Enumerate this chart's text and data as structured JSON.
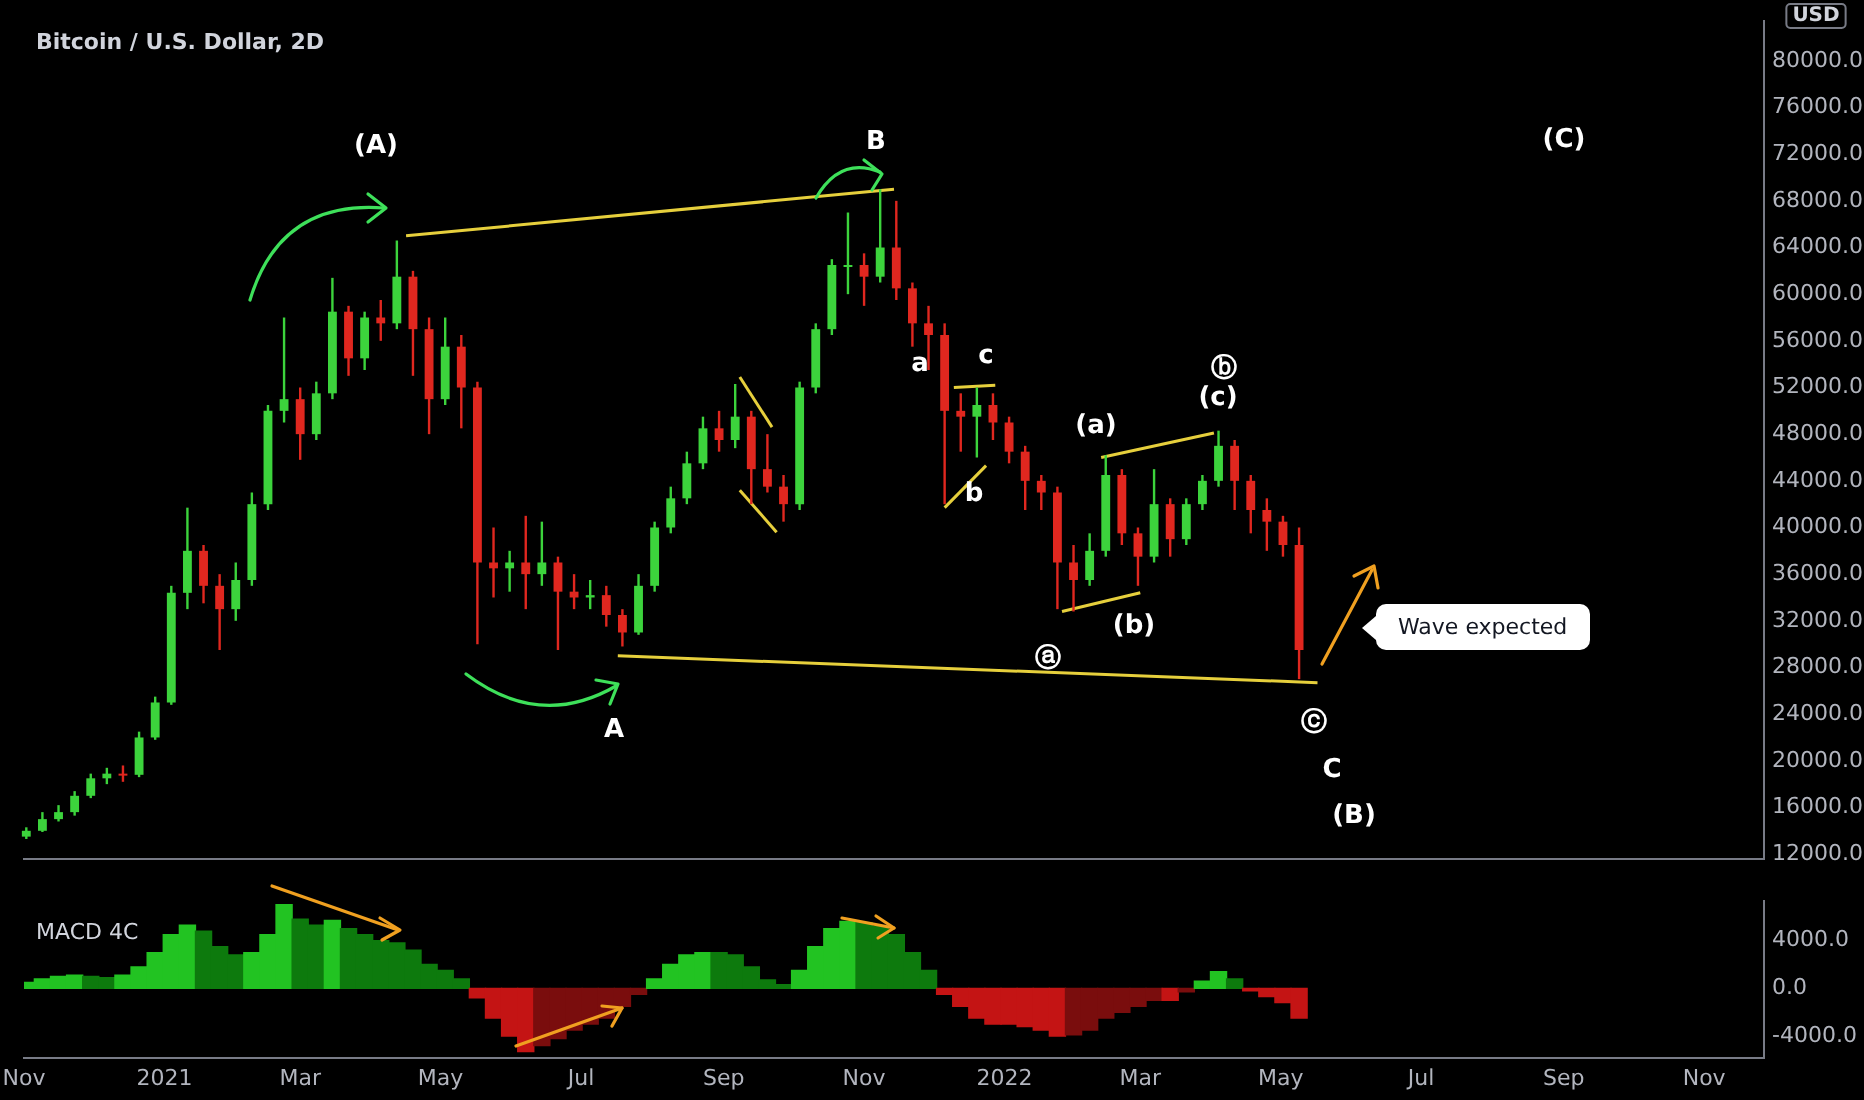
{
  "chart_data": [
    {
      "type": "candlestick",
      "title": "Bitcoin / U.S. Dollar, 2D",
      "ylabel": "USD",
      "x": [
        "2020-11-02",
        "2020-11-09",
        "2020-11-16",
        "2020-11-23",
        "2020-11-30",
        "2020-12-07",
        "2020-12-14",
        "2020-12-21",
        "2020-12-28",
        "2021-01-04",
        "2021-01-11",
        "2021-01-18",
        "2021-01-25",
        "2021-02-01",
        "2021-02-08",
        "2021-02-15",
        "2021-02-22",
        "2021-03-01",
        "2021-03-08",
        "2021-03-15",
        "2021-03-22",
        "2021-03-29",
        "2021-04-05",
        "2021-04-12",
        "2021-04-19",
        "2021-04-26",
        "2021-05-03",
        "2021-05-10",
        "2021-05-17",
        "2021-05-24",
        "2021-05-31",
        "2021-06-07",
        "2021-06-14",
        "2021-06-21",
        "2021-06-28",
        "2021-07-05",
        "2021-07-12",
        "2021-07-19",
        "2021-07-26",
        "2021-08-02",
        "2021-08-09",
        "2021-08-16",
        "2021-08-23",
        "2021-08-30",
        "2021-09-06",
        "2021-09-13",
        "2021-09-20",
        "2021-09-27",
        "2021-10-04",
        "2021-10-11",
        "2021-10-18",
        "2021-10-25",
        "2021-11-01",
        "2021-11-08",
        "2021-11-15",
        "2021-11-22",
        "2021-11-29",
        "2021-12-06",
        "2021-12-13",
        "2021-12-20",
        "2021-12-27",
        "2022-01-03",
        "2022-01-10",
        "2022-01-17",
        "2022-01-24",
        "2022-01-31",
        "2022-02-07",
        "2022-02-14",
        "2022-02-21",
        "2022-02-28",
        "2022-03-07",
        "2022-03-14",
        "2022-03-21",
        "2022-03-28",
        "2022-04-04",
        "2022-04-11",
        "2022-04-18",
        "2022-04-25",
        "2022-05-02",
        "2022-05-09"
      ],
      "ohlc": [
        [
          13500,
          14300,
          13300,
          14000
        ],
        [
          14000,
          15600,
          13900,
          15000
        ],
        [
          15000,
          16200,
          14800,
          15600
        ],
        [
          15600,
          17400,
          15300,
          17000
        ],
        [
          17000,
          18900,
          16800,
          18500
        ],
        [
          18500,
          19400,
          18000,
          18900
        ],
        [
          18900,
          19600,
          18200,
          18800
        ],
        [
          18800,
          22500,
          18600,
          22000
        ],
        [
          22000,
          25500,
          21800,
          25000
        ],
        [
          25000,
          35000,
          24800,
          34400
        ],
        [
          34400,
          41700,
          33000,
          38000
        ],
        [
          38000,
          38500,
          33500,
          35000
        ],
        [
          35000,
          36000,
          29500,
          33000
        ],
        [
          33000,
          37000,
          32000,
          35500
        ],
        [
          35500,
          43000,
          35000,
          42000
        ],
        [
          42000,
          50500,
          41500,
          50000
        ],
        [
          50000,
          58000,
          49000,
          51000
        ],
        [
          51000,
          52000,
          45800,
          48000
        ],
        [
          48000,
          52500,
          47500,
          51500
        ],
        [
          51500,
          61400,
          51000,
          58500
        ],
        [
          58500,
          59000,
          53000,
          54500
        ],
        [
          54500,
          58500,
          53500,
          58000
        ],
        [
          58000,
          59500,
          56000,
          57500
        ],
        [
          57500,
          64600,
          57000,
          61500
        ],
        [
          61500,
          62000,
          53000,
          57000
        ],
        [
          57000,
          58000,
          48000,
          51000
        ],
        [
          51000,
          58000,
          50500,
          55500
        ],
        [
          55500,
          56500,
          48500,
          52000
        ],
        [
          52000,
          52500,
          30000,
          37000
        ],
        [
          37000,
          40000,
          34000,
          36500
        ],
        [
          36500,
          38000,
          34500,
          37000
        ],
        [
          37000,
          41000,
          33000,
          36000
        ],
        [
          36000,
          40500,
          35000,
          37000
        ],
        [
          37000,
          37500,
          29500,
          34500
        ],
        [
          34500,
          36000,
          33000,
          34000
        ],
        [
          34000,
          35500,
          33000,
          34200
        ],
        [
          34200,
          35000,
          31500,
          32500
        ],
        [
          32500,
          33000,
          29800,
          31000
        ],
        [
          31000,
          36000,
          30800,
          35000
        ],
        [
          35000,
          40500,
          34500,
          40000
        ],
        [
          40000,
          43500,
          39500,
          42500
        ],
        [
          42500,
          46500,
          42000,
          45500
        ],
        [
          45500,
          49500,
          45000,
          48500
        ],
        [
          48500,
          50000,
          46500,
          47500
        ],
        [
          47500,
          52300,
          46800,
          49500
        ],
        [
          49500,
          50000,
          42000,
          45000
        ],
        [
          45000,
          48000,
          43000,
          43500
        ],
        [
          43500,
          44500,
          40500,
          42000
        ],
        [
          42000,
          52500,
          41500,
          52000
        ],
        [
          52000,
          57500,
          51500,
          57000
        ],
        [
          57000,
          63000,
          56500,
          62500
        ],
        [
          62500,
          67000,
          60000,
          62500
        ],
        [
          62500,
          63500,
          59000,
          61500
        ],
        [
          61500,
          69000,
          61000,
          64000
        ],
        [
          64000,
          68000,
          59500,
          60500
        ],
        [
          60500,
          61000,
          55500,
          57500
        ],
        [
          57500,
          59000,
          53500,
          56500
        ],
        [
          56500,
          57500,
          42000,
          50000
        ],
        [
          50000,
          51500,
          46500,
          49500
        ],
        [
          49500,
          52000,
          46000,
          50500
        ],
        [
          50500,
          51500,
          47500,
          49000
        ],
        [
          49000,
          49500,
          45500,
          46500
        ],
        [
          46500,
          47000,
          41500,
          44000
        ],
        [
          44000,
          44500,
          41500,
          43000
        ],
        [
          43000,
          43500,
          33000,
          37000
        ],
        [
          37000,
          38500,
          32800,
          35500
        ],
        [
          35500,
          39500,
          35000,
          38000
        ],
        [
          38000,
          46200,
          37500,
          44500
        ],
        [
          44500,
          45000,
          38500,
          39500
        ],
        [
          39500,
          40000,
          35000,
          37500
        ],
        [
          37500,
          45000,
          37000,
          42000
        ],
        [
          42000,
          42500,
          37500,
          39000
        ],
        [
          39000,
          42500,
          38500,
          42000
        ],
        [
          42000,
          44500,
          41500,
          44000
        ],
        [
          44000,
          48300,
          43500,
          47000
        ],
        [
          47000,
          47500,
          41500,
          44000
        ],
        [
          44000,
          44500,
          39500,
          41500
        ],
        [
          41500,
          42500,
          38000,
          40500
        ],
        [
          40500,
          41000,
          37500,
          38500
        ],
        [
          38500,
          40000,
          27000,
          29500
        ]
      ],
      "series": [
        {
          "type": "line",
          "color": "#e6cf3c",
          "x": [
            "2021-04-16",
            "2021-11-14"
          ],
          "values": [
            65000,
            69000
          ]
        },
        {
          "type": "line",
          "color": "#e6cf3c",
          "x": [
            "2021-07-17",
            "2022-05-17"
          ],
          "values": [
            29000,
            26700
          ]
        },
        {
          "type": "line",
          "color": "#e6cf3c",
          "x": [
            "2021-09-08",
            "2021-09-22"
          ],
          "values": [
            52900,
            48600
          ]
        },
        {
          "type": "line",
          "color": "#e6cf3c",
          "x": [
            "2021-09-08",
            "2021-09-24"
          ],
          "values": [
            43200,
            39600
          ]
        },
        {
          "type": "line",
          "color": "#e6cf3c",
          "x": [
            "2021-12-10",
            "2021-12-28"
          ],
          "values": [
            52000,
            52200
          ]
        },
        {
          "type": "line",
          "color": "#e6cf3c",
          "x": [
            "2021-12-06",
            "2021-12-24"
          ],
          "values": [
            41700,
            45300
          ]
        },
        {
          "type": "line",
          "color": "#e6cf3c",
          "x": [
            "2022-02-12",
            "2022-04-02"
          ],
          "values": [
            46000,
            48100
          ]
        },
        {
          "type": "line",
          "color": "#e6cf3c",
          "x": [
            "2022-01-26",
            "2022-03-01"
          ],
          "values": [
            32800,
            34400
          ]
        }
      ],
      "xlim": [
        "2020-11-01",
        "2022-11-27"
      ],
      "ylim": [
        11600,
        83400
      ],
      "yticks": [
        {
          "value": 12000,
          "label": "12000.0"
        },
        {
          "value": 16000,
          "label": "16000.0"
        },
        {
          "value": 20000,
          "label": "20000.0"
        },
        {
          "value": 24000,
          "label": "24000.0"
        },
        {
          "value": 28000,
          "label": "28000.0"
        },
        {
          "value": 32000,
          "label": "32000.0"
        },
        {
          "value": 36000,
          "label": "36000.0"
        },
        {
          "value": 40000,
          "label": "40000.0"
        },
        {
          "value": 44000,
          "label": "44000.0"
        },
        {
          "value": 48000,
          "label": "48000.0"
        },
        {
          "value": 52000,
          "label": "52000.0"
        },
        {
          "value": 56000,
          "label": "56000.0"
        },
        {
          "value": 60000,
          "label": "60000.0"
        },
        {
          "value": 64000,
          "label": "64000.0"
        },
        {
          "value": 68000,
          "label": "68000.0"
        },
        {
          "value": 72000,
          "label": "72000.0"
        },
        {
          "value": 76000,
          "label": "76000.0"
        },
        {
          "value": 80000,
          "label": "80000.0"
        }
      ],
      "tick_labels": "y",
      "annotations": [
        "(A)",
        "B",
        "A",
        "a",
        "c",
        "b",
        "(a)",
        "(b)",
        "ⓐ",
        "ⓑ",
        "(c)",
        "ⓒ",
        "C",
        "(B)",
        "(C)",
        "Wave expected"
      ]
    },
    {
      "type": "bar",
      "title": "MACD 4C",
      "x": [
        "2020-11-02",
        "2020-11-09",
        "2020-11-16",
        "2020-11-23",
        "2020-11-30",
        "2020-12-07",
        "2020-12-14",
        "2020-12-21",
        "2020-12-28",
        "2021-01-04",
        "2021-01-11",
        "2021-01-18",
        "2021-01-25",
        "2021-02-01",
        "2021-02-08",
        "2021-02-15",
        "2021-02-22",
        "2021-03-01",
        "2021-03-08",
        "2021-03-15",
        "2021-03-22",
        "2021-03-29",
        "2021-04-05",
        "2021-04-12",
        "2021-04-19",
        "2021-04-26",
        "2021-05-03",
        "2021-05-10",
        "2021-05-17",
        "2021-05-24",
        "2021-05-31",
        "2021-06-07",
        "2021-06-14",
        "2021-06-21",
        "2021-06-28",
        "2021-07-05",
        "2021-07-12",
        "2021-07-19",
        "2021-07-26",
        "2021-08-02",
        "2021-08-09",
        "2021-08-16",
        "2021-08-23",
        "2021-08-30",
        "2021-09-06",
        "2021-09-13",
        "2021-09-20",
        "2021-09-27",
        "2021-10-04",
        "2021-10-11",
        "2021-10-18",
        "2021-10-25",
        "2021-11-01",
        "2021-11-08",
        "2021-11-15",
        "2021-11-22",
        "2021-11-29",
        "2021-12-06",
        "2021-12-13",
        "2021-12-20",
        "2021-12-27",
        "2022-01-03",
        "2022-01-10",
        "2022-01-17",
        "2022-01-24",
        "2022-01-31",
        "2022-02-07",
        "2022-02-14",
        "2022-02-21",
        "2022-02-28",
        "2022-03-07",
        "2022-03-14",
        "2022-03-21",
        "2022-03-28",
        "2022-04-04",
        "2022-04-11",
        "2022-04-18",
        "2022-04-25",
        "2022-05-02",
        "2022-05-09"
      ],
      "values": [
        500,
        800,
        1000,
        1100,
        1000,
        900,
        1100,
        1800,
        3000,
        4500,
        5300,
        4800,
        3500,
        2800,
        3000,
        4500,
        7000,
        5800,
        5300,
        5700,
        5000,
        4500,
        4000,
        3800,
        3200,
        2000,
        1500,
        800,
        -800,
        -2500,
        -4000,
        -5300,
        -4800,
        -4200,
        -3500,
        -3000,
        -2500,
        -1500,
        -500,
        800,
        2000,
        2800,
        3000,
        3000,
        2800,
        1800,
        700,
        300,
        1500,
        3500,
        5000,
        5600,
        5500,
        5200,
        4500,
        3000,
        1500,
        -500,
        -1500,
        -2500,
        -3000,
        -3000,
        -3200,
        -3500,
        -4000,
        -3900,
        -3500,
        -2500,
        -2000,
        -1500,
        -1000,
        -1000,
        -300,
        600,
        1400,
        800,
        -200,
        -700,
        -1200,
        -2500
      ],
      "colors": [
        "#22c322",
        "#22c322",
        "#22c322",
        "#22c322",
        "#0d7a0d",
        "#0d7a0d",
        "#22c322",
        "#22c322",
        "#22c322",
        "#22c322",
        "#22c322",
        "#0d7a0d",
        "#0d7a0d",
        "#0d7a0d",
        "#22c322",
        "#22c322",
        "#22c322",
        "#0d7a0d",
        "#0d7a0d",
        "#22c322",
        "#0d7a0d",
        "#0d7a0d",
        "#0d7a0d",
        "#0d7a0d",
        "#0d7a0d",
        "#0d7a0d",
        "#0d7a0d",
        "#0d7a0d",
        "#c41414",
        "#c41414",
        "#c41414",
        "#c41414",
        "#7a0d0d",
        "#7a0d0d",
        "#7a0d0d",
        "#7a0d0d",
        "#7a0d0d",
        "#7a0d0d",
        "#7a0d0d",
        "#22c322",
        "#22c322",
        "#22c322",
        "#22c322",
        "#0d7a0d",
        "#0d7a0d",
        "#0d7a0d",
        "#0d7a0d",
        "#0d7a0d",
        "#22c322",
        "#22c322",
        "#22c322",
        "#22c322",
        "#0d7a0d",
        "#0d7a0d",
        "#0d7a0d",
        "#0d7a0d",
        "#0d7a0d",
        "#c41414",
        "#c41414",
        "#c41414",
        "#c41414",
        "#c41414",
        "#c41414",
        "#c41414",
        "#c41414",
        "#7a0d0d",
        "#7a0d0d",
        "#7a0d0d",
        "#7a0d0d",
        "#7a0d0d",
        "#7a0d0d",
        "#c41414",
        "#7a0d0d",
        "#22c322",
        "#22c322",
        "#0d7a0d",
        "#c41414",
        "#c41414",
        "#c41414",
        "#c41414"
      ],
      "xlim": [
        "2020-11-01",
        "2022-11-27"
      ],
      "xticks": [
        {
          "value": "2020-11-01",
          "label": "Nov"
        },
        {
          "value": "2021-01-01",
          "label": "2021"
        },
        {
          "value": "2021-03-01",
          "label": "Mar"
        },
        {
          "value": "2021-05-01",
          "label": "May"
        },
        {
          "value": "2021-07-01",
          "label": "Jul"
        },
        {
          "value": "2021-09-01",
          "label": "Sep"
        },
        {
          "value": "2021-11-01",
          "label": "Nov"
        },
        {
          "value": "2022-01-01",
          "label": "2022"
        },
        {
          "value": "2022-03-01",
          "label": "Mar"
        },
        {
          "value": "2022-05-01",
          "label": "May"
        },
        {
          "value": "2022-07-01",
          "label": "Jul"
        },
        {
          "value": "2022-09-01",
          "label": "Sep"
        },
        {
          "value": "2022-11-01",
          "label": "Nov"
        }
      ],
      "ylim": [
        -5800,
        7300
      ],
      "yticks": [
        {
          "value": -4000,
          "label": "-4000.0"
        },
        {
          "value": 0,
          "label": "0.0"
        },
        {
          "value": 4000,
          "label": "4000.0"
        }
      ]
    }
  ]
}
